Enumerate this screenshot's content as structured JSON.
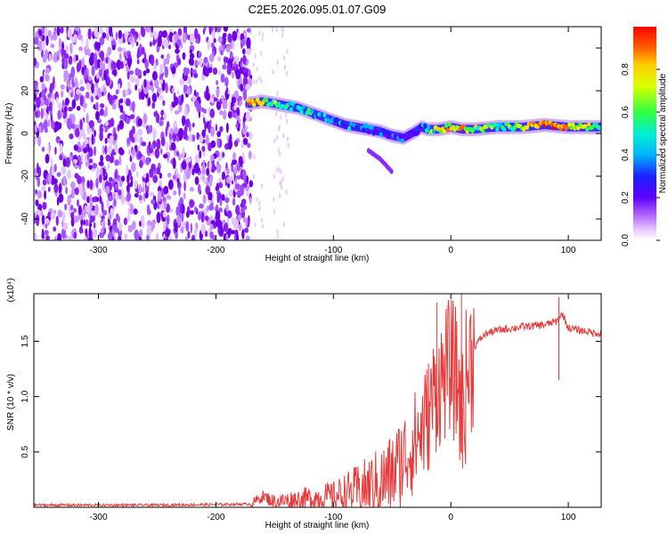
{
  "title": "C2E5.2026.095.01.07.G09",
  "colors": {
    "snr_line": "#e83a3a",
    "low_amplitude": "#6f00e6",
    "colormap": [
      "#ffffff",
      "#e9c8ff",
      "#b060ff",
      "#6000ff",
      "#1a22ff",
      "#00b4ff",
      "#00f0d0",
      "#30ff40",
      "#d8ff00",
      "#ffd000",
      "#ff6000",
      "#ff0000"
    ]
  },
  "chart_data": [
    {
      "type": "heatmap",
      "title": "C2E5.2026.095.01.07.G09",
      "xlabel": "Height of straight line (km)",
      "ylabel": "Frequency (Hz)",
      "xlim": [
        -355,
        128
      ],
      "ylim": [
        -50,
        50
      ],
      "x_ticks": [
        "-300",
        "-200",
        "-100",
        "0",
        "100"
      ],
      "y_ticks": [
        "-40",
        "-20",
        "0",
        "20",
        "40"
      ],
      "colorbar": {
        "label": "Normalized spectral amplitude",
        "range": [
          0,
          1
        ],
        "ticks": [
          "0.0",
          "0.2",
          "0.4",
          "0.6",
          "0.8"
        ]
      },
      "noise_region_x": [
        -355,
        -170
      ],
      "ridge": {
        "x": [
          -172,
          -160,
          -150,
          -140,
          -130,
          -120,
          -110,
          -100,
          -90,
          -80,
          -70,
          -60,
          -50,
          -40,
          -30,
          -25,
          -20,
          -10,
          0,
          10,
          20,
          40,
          60,
          80,
          100,
          128
        ],
        "frequency": [
          14,
          15,
          14,
          13,
          12,
          10,
          8,
          6,
          4,
          3,
          2,
          1,
          -1,
          -2,
          1,
          3,
          2,
          2,
          3,
          2,
          2,
          3,
          3,
          4,
          3,
          3
        ],
        "amplitude": [
          0.85,
          0.8,
          0.55,
          0.5,
          0.45,
          0.45,
          0.4,
          0.4,
          0.38,
          0.38,
          0.36,
          0.34,
          0.3,
          0.28,
          0.32,
          0.4,
          0.55,
          0.7,
          0.75,
          0.8,
          0.7,
          0.6,
          0.75,
          0.9,
          0.8,
          0.6
        ]
      },
      "branch": {
        "x": [
          -70,
          -60,
          -50
        ],
        "frequency": [
          -8,
          -12,
          -18
        ]
      }
    },
    {
      "type": "line",
      "xlabel": "Height of straight line (km)",
      "ylabel": "SNR (10 * v/v)",
      "y_multiplier": "(x10⁴)",
      "xlim": [
        -355,
        128
      ],
      "ylim": [
        0,
        1.93
      ],
      "x_ticks": [
        "-300",
        "-200",
        "-100",
        "0",
        "100"
      ],
      "y_ticks": [
        "0.5",
        "1.0",
        "1.5"
      ],
      "series": [
        {
          "x": [
            -355,
            -300,
            -250,
            -200,
            -170,
            -160,
            -150,
            -140,
            -120,
            -100,
            -80,
            -60,
            -50,
            -40,
            -30,
            -25,
            -20,
            -15,
            -10,
            -5,
            0,
            5,
            10,
            15,
            20,
            25,
            30,
            40,
            60,
            80,
            90,
            95,
            100,
            110,
            120,
            128
          ],
          "y": [
            0.02,
            0.02,
            0.02,
            0.025,
            0.03,
            0.1,
            0.05,
            0.06,
            0.08,
            0.1,
            0.15,
            0.22,
            0.3,
            0.45,
            0.6,
            0.7,
            0.8,
            1.0,
            1.1,
            1.2,
            1.3,
            1.15,
            0.9,
            1.25,
            1.45,
            1.52,
            1.57,
            1.6,
            1.63,
            1.65,
            1.68,
            1.75,
            1.62,
            1.6,
            1.58,
            1.57
          ]
        }
      ],
      "spikes": [
        {
          "x": -12,
          "y": 1.85
        },
        {
          "x": 9,
          "y": 1.95
        },
        {
          "x": 10,
          "y": 0.35
        },
        {
          "x": 92,
          "y": 1.9
        },
        {
          "x": 92,
          "y": 1.15
        }
      ]
    }
  ]
}
